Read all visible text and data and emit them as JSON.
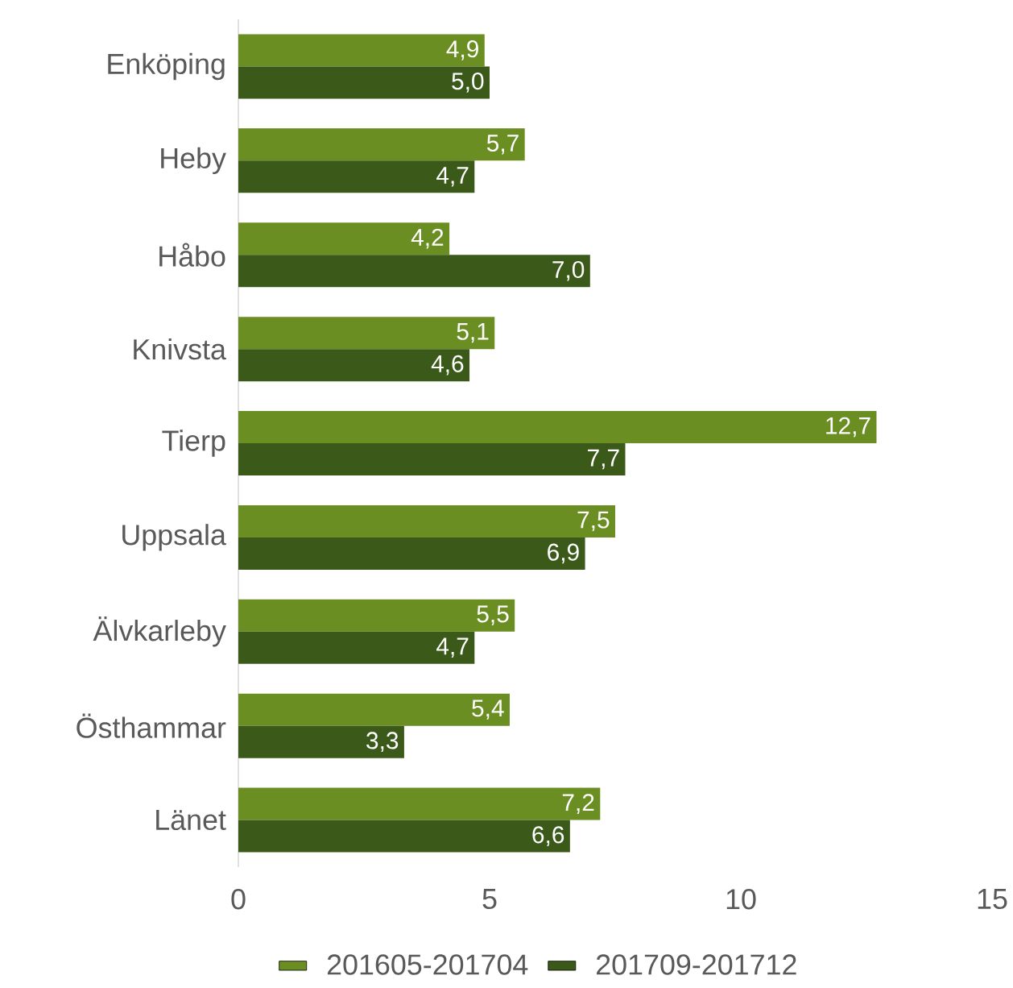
{
  "chart_data": {
    "type": "bar",
    "orientation": "horizontal",
    "categories": [
      "Enköping",
      "Heby",
      "Håbo",
      "Knivsta",
      "Tierp",
      "Uppsala",
      "Älvkarleby",
      "Östhammar",
      "Länet"
    ],
    "series": [
      {
        "name": "201605-201704",
        "color": "#6b8e23",
        "values": [
          4.9,
          5.7,
          4.2,
          5.1,
          12.7,
          7.5,
          5.5,
          5.4,
          7.2
        ],
        "value_labels": [
          "4,9",
          "5,7",
          "4,2",
          "5,1",
          "12,7",
          "7,5",
          "5,5",
          "5,4",
          "7,2"
        ]
      },
      {
        "name": "201709-201712",
        "color": "#3b5a1a",
        "values": [
          5.0,
          4.7,
          7.0,
          4.6,
          7.7,
          6.9,
          4.7,
          3.3,
          6.6
        ],
        "value_labels": [
          "5,0",
          "4,7",
          "7,0",
          "4,6",
          "7,7",
          "6,9",
          "4,7",
          "3,3",
          "6,6"
        ]
      }
    ],
    "xlim": [
      0,
      15
    ],
    "xticks": [
      0,
      5,
      10,
      15
    ],
    "grid": false,
    "legend": "bottom"
  }
}
